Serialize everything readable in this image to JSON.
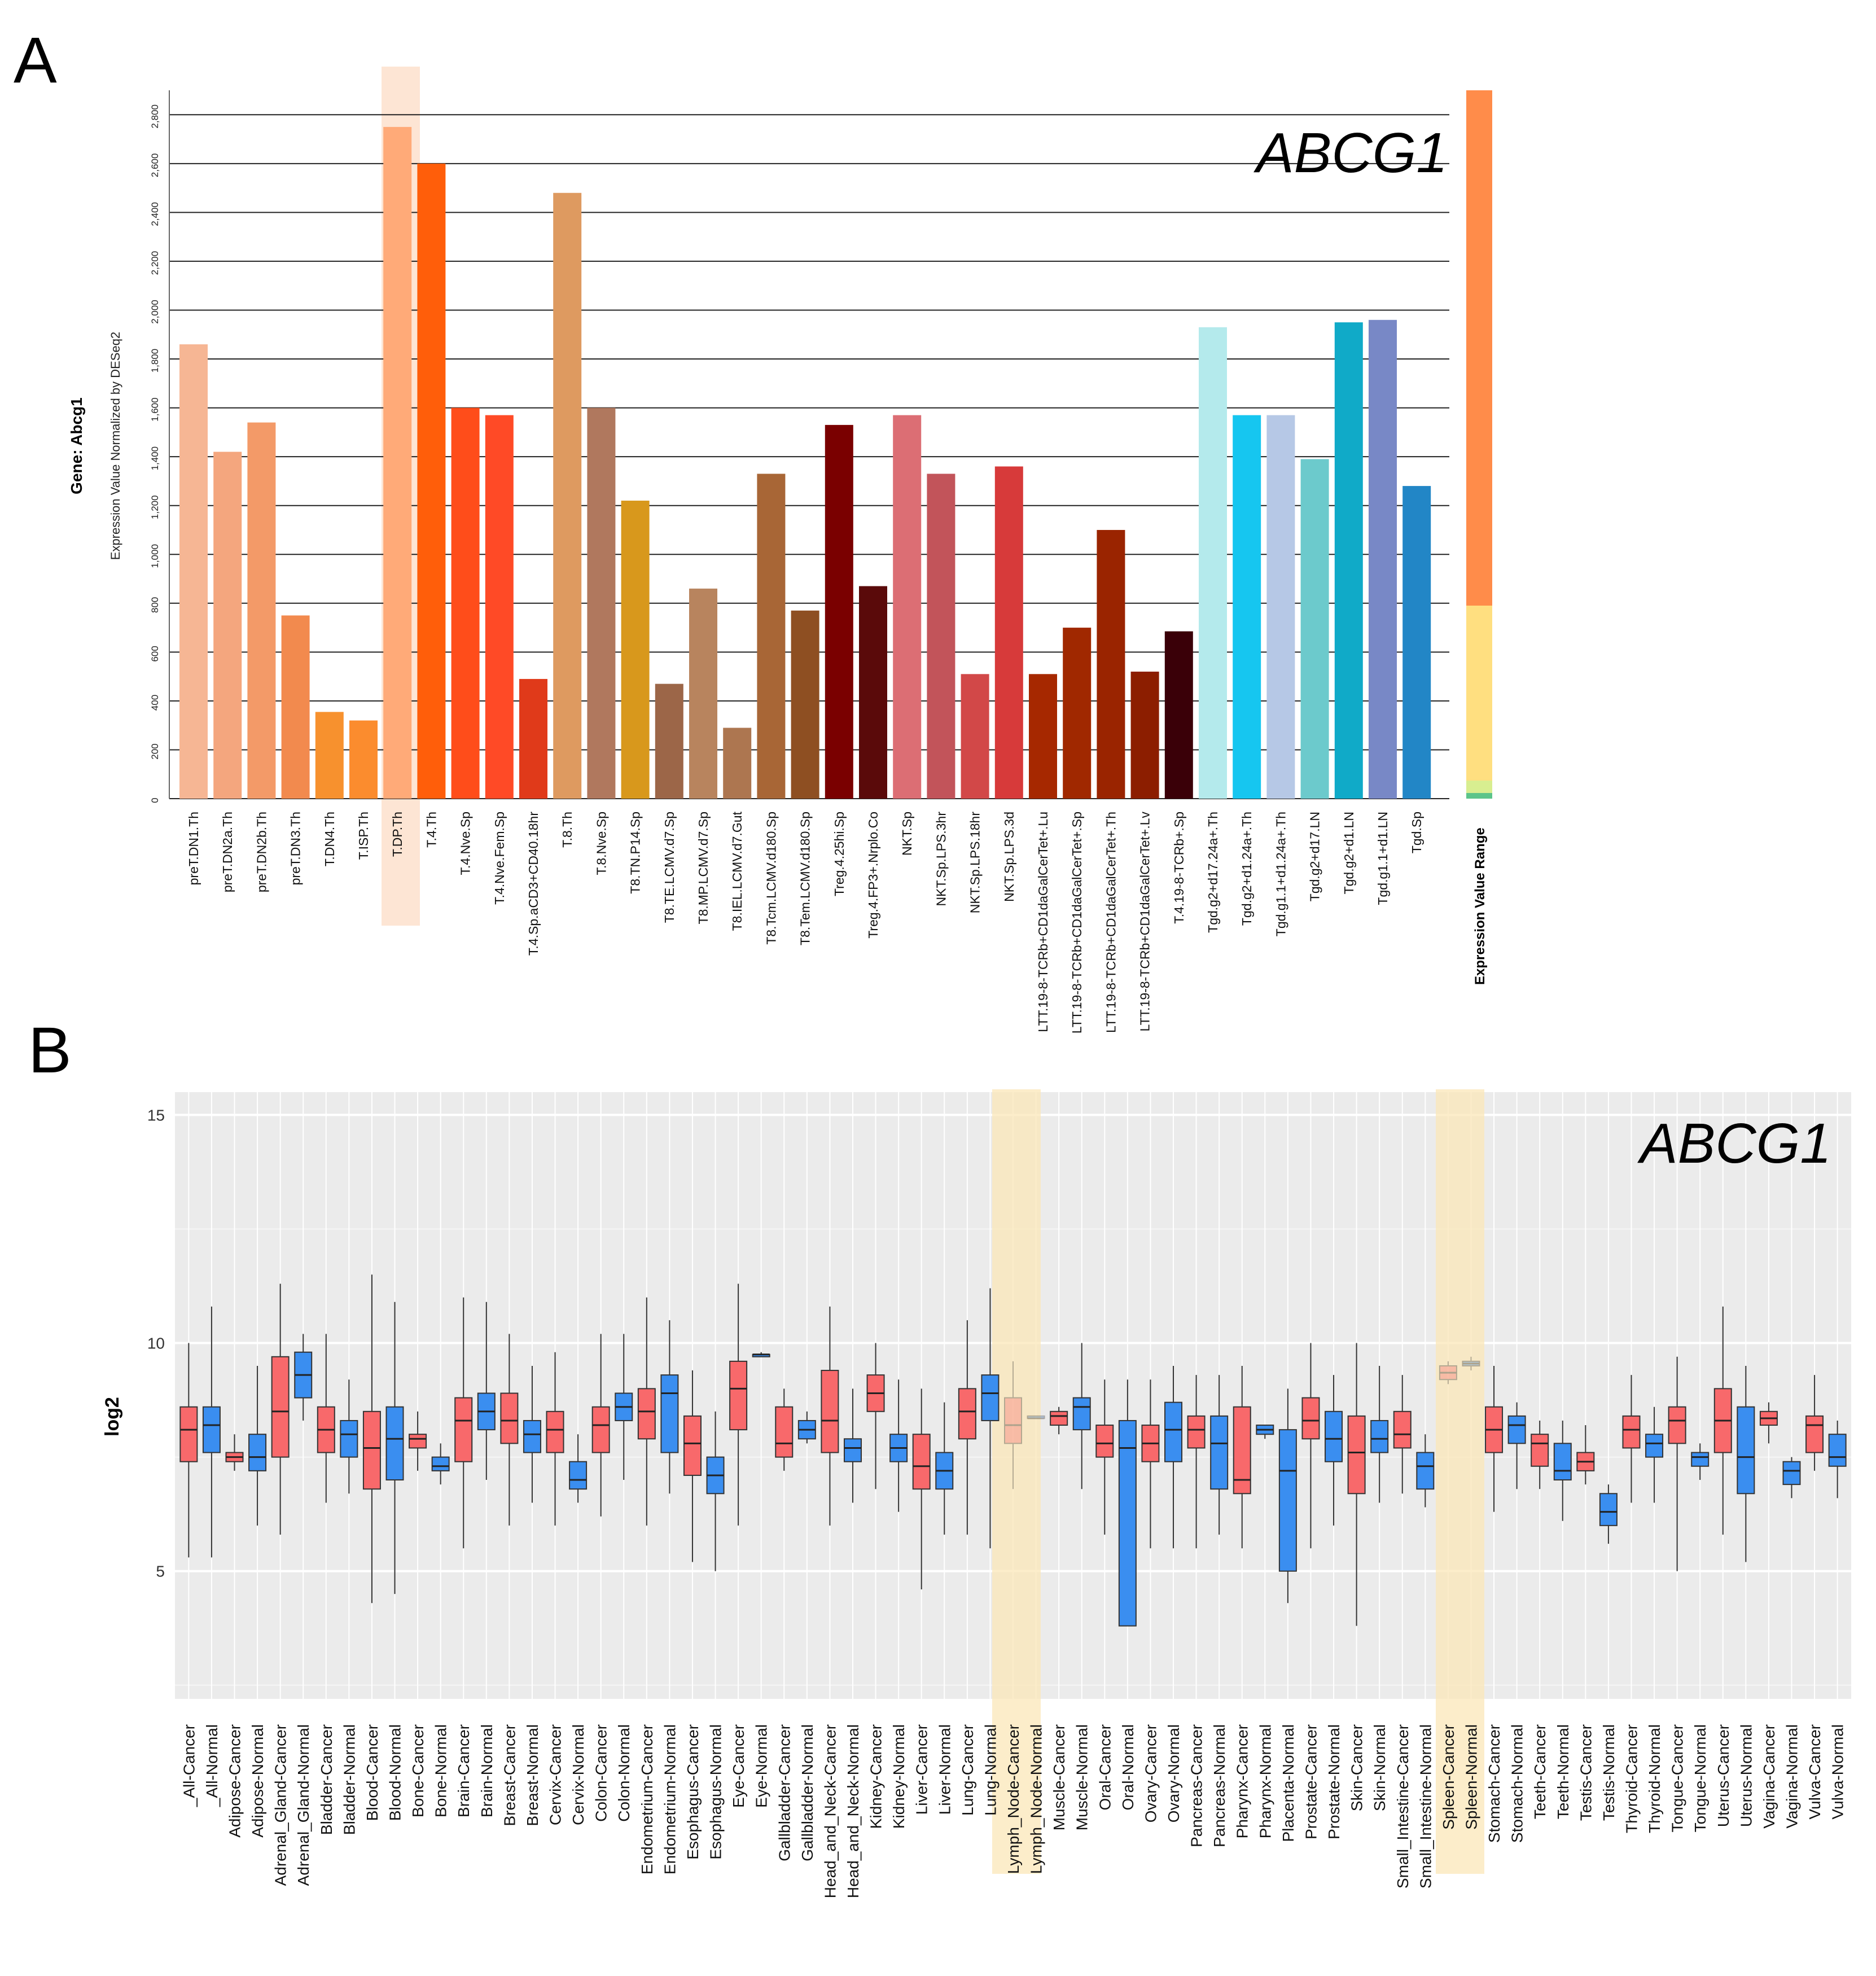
{
  "panel_a": {
    "label": "A",
    "gene_title": "ABCG1",
    "ylabel_gene": "Gene: Abcg1",
    "ylabel": "Expression Value Normalized by DESeq2",
    "range_label": "Expression Value Range",
    "highlight": "T.DP.Th"
  },
  "panel_b": {
    "label": "B",
    "gene_title": "ABCG1",
    "ylabel": "log2",
    "highlights": [
      "Lymph_Node-Cancer",
      "Lymph_Node-Normal",
      "Spleen-Cancer",
      "Spleen-Normal"
    ]
  },
  "chart_data": [
    {
      "type": "bar",
      "title": "ABCG1",
      "ylabel": "Expression Value Normalized by DESeq2",
      "ylim": [
        0,
        2900
      ],
      "yticks": [
        "0",
        "200",
        "400",
        "600",
        "800",
        "1,000",
        "1,200",
        "1,400",
        "1,600",
        "1,800",
        "2,000",
        "2,200",
        "2,400",
        "2,600",
        "2,800"
      ],
      "tick_values": [
        0,
        200,
        400,
        600,
        800,
        1000,
        1200,
        1400,
        1600,
        1800,
        2000,
        2200,
        2400,
        2600,
        2800
      ],
      "categories": [
        "preT.DN1.Th",
        "preT.DN2a.Th",
        "preT.DN2b.Th",
        "preT.DN3.Th",
        "T.DN4.Th",
        "T.ISP.Th",
        "T.DP.Th",
        "T.4.Th",
        "T.4.Nve.Sp",
        "T.4.Nve.Fem.Sp",
        "T.4.Sp.aCD3+CD40.18hr",
        "T.8.Th",
        "T.8.Nve.Sp",
        "T8.TN.P14.Sp",
        "T8.TE.LCMV.d7.Sp",
        "T8.MP.LCMV.d7.Sp",
        "T8.IEL.LCMV.d7.Gut",
        "T8.Tcm.LCMV.d180.Sp",
        "T8.Tem.LCMV.d180.Sp",
        "Treg.4.25hi.Sp",
        "Treg.4.FP3+.Nrplo.Co",
        "NKT.Sp",
        "NKT.Sp.LPS.3hr",
        "NKT.Sp.LPS.18hr",
        "NKT.Sp.LPS.3d",
        "LTT.19-8-TCRb+CD1daGalCerTet+.Lu",
        "LTT.19-8-TCRb+CD1daGalCerTet+.Sp",
        "LTT.19-8-TCRb+CD1daGalCerTet+.Th",
        "LTT.19-8-TCRb+CD1daGalCerTet+.Lv",
        "T.4.19-8-TCRb+.Sp",
        "Tgd.g2+d17.24a+.Th",
        "Tgd.g2+d1.24a+.Th",
        "Tgd.g1.1+d1.24a+.Th",
        "Tgd.g2+d17.LN",
        "Tgd.g2+d1.LN",
        "Tgd.g1.1+d1.LN",
        "Tgd.Sp"
      ],
      "values": [
        1860,
        1420,
        1540,
        750,
        355,
        320,
        2750,
        2600,
        1600,
        1570,
        490,
        2480,
        1600,
        1220,
        470,
        860,
        290,
        1330,
        770,
        1530,
        870,
        1570,
        1330,
        510,
        1360,
        510,
        700,
        1100,
        520,
        685,
        1930,
        1570,
        1570,
        1390,
        1950,
        1960,
        1280
      ],
      "colors": [
        "#f6b694",
        "#f4a67e",
        "#f39a68",
        "#f28a4e",
        "#f7912e",
        "#fb8c2e",
        "#ffaa78",
        "#ff5e0a",
        "#ff4d1a",
        "#ff4a26",
        "#e03a1a",
        "#de9a60",
        "#b0785e",
        "#d8981c",
        "#9c6648",
        "#b8845e",
        "#ad7650",
        "#a86636",
        "#8e4f22",
        "#7a0000",
        "#5a0a0a",
        "#dc6e74",
        "#c2545a",
        "#d24848",
        "#d73a3a",
        "#a62800",
        "#a02800",
        "#9a2400",
        "#8c1e00",
        "#3a0008",
        "#b4eaec",
        "#16c6f0",
        "#b6c8e6",
        "#6ccacc",
        "#10aac8",
        "#7888c6",
        "#2286c6"
      ]
    },
    {
      "type": "box",
      "title": "ABCG1",
      "ylabel": "log2",
      "ylim": [
        2.2,
        15.5
      ],
      "yticks": [
        "5",
        "10",
        "15"
      ],
      "tick_values": [
        5,
        10,
        15
      ],
      "categories": [
        "_All-Cancer",
        "_All-Normal",
        "Adipose-Cancer",
        "Adipose-Normal",
        "Adrenal_Gland-Cancer",
        "Adrenal_Gland-Normal",
        "Bladder-Cancer",
        "Bladder-Normal",
        "Blood-Cancer",
        "Blood-Normal",
        "Bone-Cancer",
        "Bone-Normal",
        "Brain-Cancer",
        "Brain-Normal",
        "Breast-Cancer",
        "Breast-Normal",
        "Cervix-Cancer",
        "Cervix-Normal",
        "Colon-Cancer",
        "Colon-Normal",
        "Endometrium-Cancer",
        "Endometrium-Normal",
        "Esophagus-Cancer",
        "Esophagus-Normal",
        "Eye-Cancer",
        "Eye-Normal",
        "Gallbladder-Cancer",
        "Gallbladder-Normal",
        "Head_and_Neck-Cancer",
        "Head_and_Neck-Normal",
        "Kidney-Cancer",
        "Kidney-Normal",
        "Liver-Cancer",
        "Liver-Normal",
        "Lung-Cancer",
        "Lung-Normal",
        "Lymph_Node-Cancer",
        "Lymph_Node-Normal",
        "Muscle-Cancer",
        "Muscle-Normal",
        "Oral-Cancer",
        "Oral-Normal",
        "Ovary-Cancer",
        "Ovary-Normal",
        "Pancreas-Cancer",
        "Pancreas-Normal",
        "Pharynx-Cancer",
        "Pharynx-Normal",
        "Placenta-Normal",
        "Prostate-Cancer",
        "Prostate-Normal",
        "Skin-Cancer",
        "Skin-Normal",
        "Small_Intestine-Cancer",
        "Small_Intestine-Normal",
        "Spleen-Cancer",
        "Spleen-Normal",
        "Stomach-Cancer",
        "Stomach-Normal",
        "Teeth-Cancer",
        "Teeth-Normal",
        "Testis-Cancer",
        "Testis-Normal",
        "Thyroid-Cancer",
        "Thyroid-Normal",
        "Tongue-Cancer",
        "Tongue-Normal",
        "Uterus-Cancer",
        "Uterus-Normal",
        "Vagina-Cancer",
        "Vagina-Normal",
        "Vulva-Cancer",
        "Vulva-Normal"
      ],
      "boxes": [
        [
          5.3,
          7.4,
          8.1,
          8.6,
          10.0
        ],
        [
          5.3,
          7.6,
          8.2,
          8.6,
          10.8
        ],
        [
          7.2,
          7.4,
          7.5,
          7.6,
          8.0
        ],
        [
          6.0,
          7.2,
          7.5,
          8.0,
          9.5
        ],
        [
          5.8,
          7.5,
          8.5,
          9.7,
          11.3
        ],
        [
          8.3,
          8.8,
          9.3,
          9.8,
          10.2
        ],
        [
          6.5,
          7.6,
          8.1,
          8.6,
          10.2
        ],
        [
          6.7,
          7.5,
          8.0,
          8.3,
          9.2
        ],
        [
          4.3,
          6.8,
          7.7,
          8.5,
          11.5
        ],
        [
          4.5,
          7.0,
          7.9,
          8.6,
          10.9
        ],
        [
          7.2,
          7.7,
          7.9,
          8.0,
          8.5
        ],
        [
          6.9,
          7.2,
          7.3,
          7.5,
          7.8
        ],
        [
          5.5,
          7.4,
          8.3,
          8.8,
          11.0
        ],
        [
          7.0,
          8.1,
          8.5,
          8.9,
          10.9
        ],
        [
          6.0,
          7.8,
          8.3,
          8.9,
          10.2
        ],
        [
          6.5,
          7.6,
          8.0,
          8.3,
          9.5
        ],
        [
          6.0,
          7.6,
          8.1,
          8.5,
          9.8
        ],
        [
          6.5,
          6.8,
          7.0,
          7.4,
          8.0
        ],
        [
          6.2,
          7.6,
          8.2,
          8.6,
          10.2
        ],
        [
          7.0,
          8.3,
          8.6,
          8.9,
          10.2
        ],
        [
          6.0,
          7.9,
          8.5,
          9.0,
          11.0
        ],
        [
          6.7,
          7.6,
          8.9,
          9.3,
          10.5
        ],
        [
          5.2,
          7.1,
          7.8,
          8.4,
          9.4
        ],
        [
          5.0,
          6.7,
          7.1,
          7.5,
          8.5
        ],
        [
          6.0,
          8.1,
          9.0,
          9.6,
          11.3
        ],
        [
          9.7,
          9.7,
          9.75,
          9.75,
          9.8
        ],
        [
          7.2,
          7.5,
          7.8,
          8.6,
          9.0
        ],
        [
          7.8,
          7.9,
          8.1,
          8.3,
          8.5
        ],
        [
          6.0,
          7.6,
          8.3,
          9.4,
          10.8
        ],
        [
          6.5,
          7.4,
          7.7,
          7.9,
          9.0
        ],
        [
          6.8,
          8.5,
          8.9,
          9.3,
          10.0
        ],
        [
          6.3,
          7.4,
          7.7,
          8.0,
          9.2
        ],
        [
          4.6,
          6.8,
          7.3,
          8.0,
          9.0
        ],
        [
          5.8,
          6.8,
          7.2,
          7.6,
          8.7
        ],
        [
          5.8,
          7.9,
          8.5,
          9.0,
          10.5
        ],
        [
          5.5,
          8.3,
          8.9,
          9.3,
          11.2
        ],
        [
          6.8,
          7.8,
          8.2,
          8.8,
          9.6
        ],
        [
          8.35,
          8.35,
          8.35,
          8.4,
          8.4
        ],
        [
          8.0,
          8.2,
          8.4,
          8.5,
          8.6
        ],
        [
          6.8,
          8.1,
          8.6,
          8.8,
          10.0
        ],
        [
          5.8,
          7.5,
          7.8,
          8.2,
          9.2
        ],
        [
          3.8,
          3.8,
          7.7,
          8.3,
          9.2
        ],
        [
          5.5,
          7.4,
          7.8,
          8.2,
          9.2
        ],
        [
          5.5,
          7.4,
          8.1,
          8.7,
          9.5
        ],
        [
          5.5,
          7.7,
          8.1,
          8.4,
          9.3
        ],
        [
          5.8,
          6.8,
          7.8,
          8.4,
          9.3
        ],
        [
          5.5,
          6.7,
          7.0,
          8.6,
          9.5
        ],
        [
          7.9,
          8.0,
          8.1,
          8.2,
          8.2
        ],
        [
          4.3,
          5.0,
          7.2,
          8.1,
          9.0
        ],
        [
          5.5,
          7.9,
          8.3,
          8.8,
          10.0
        ],
        [
          6.0,
          7.4,
          7.9,
          8.5,
          9.3
        ],
        [
          3.8,
          6.7,
          7.6,
          8.4,
          10.0
        ],
        [
          6.5,
          7.6,
          7.9,
          8.3,
          9.5
        ],
        [
          6.7,
          7.7,
          8.0,
          8.5,
          9.3
        ],
        [
          6.4,
          6.8,
          7.3,
          7.6,
          8.0
        ],
        [
          9.1,
          9.2,
          9.35,
          9.5,
          9.6
        ],
        [
          9.4,
          9.5,
          9.55,
          9.6,
          9.7
        ],
        [
          6.3,
          7.6,
          8.1,
          8.6,
          9.5
        ],
        [
          6.8,
          7.8,
          8.2,
          8.4,
          8.7
        ],
        [
          6.8,
          7.3,
          7.8,
          8.0,
          8.3
        ],
        [
          6.1,
          7.0,
          7.2,
          7.8,
          8.3
        ],
        [
          6.9,
          7.2,
          7.4,
          7.6,
          8.2
        ],
        [
          5.6,
          6.0,
          6.3,
          6.7,
          6.9
        ],
        [
          6.5,
          7.7,
          8.1,
          8.4,
          9.3
        ],
        [
          6.5,
          7.5,
          7.8,
          8.0,
          8.6
        ],
        [
          5.0,
          7.8,
          8.3,
          8.6,
          9.7
        ],
        [
          7.0,
          7.3,
          7.5,
          7.6,
          7.8
        ],
        [
          5.8,
          7.6,
          8.3,
          9.0,
          10.8
        ],
        [
          5.2,
          6.7,
          7.5,
          8.6,
          9.5
        ],
        [
          7.8,
          8.2,
          8.35,
          8.5,
          8.7
        ],
        [
          6.6,
          6.9,
          7.2,
          7.4,
          7.5
        ],
        [
          7.2,
          7.6,
          8.2,
          8.4,
          9.3
        ],
        [
          6.6,
          7.3,
          7.5,
          8.0,
          8.3
        ]
      ]
    }
  ]
}
